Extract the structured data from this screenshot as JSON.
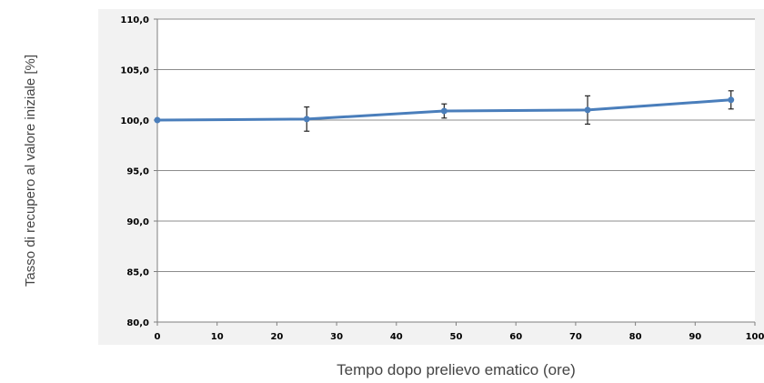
{
  "chart_data": {
    "type": "line",
    "xlabel": "Tempo dopo prelievo ematico (ore)",
    "ylabel": "Tasso di recupero al valore iniziale [%]",
    "xlim": [
      0,
      100
    ],
    "ylim": [
      80,
      110
    ],
    "x_ticks": [
      0,
      10,
      20,
      30,
      40,
      50,
      60,
      70,
      80,
      90,
      100
    ],
    "x_tick_labels": [
      "0",
      "10",
      "20",
      "30",
      "40",
      "50",
      "60",
      "70",
      "80",
      "90",
      "100"
    ],
    "y_ticks": [
      80,
      85,
      90,
      95,
      100,
      105,
      110
    ],
    "y_tick_labels": [
      "80,0",
      "85,0",
      "90,0",
      "95,0",
      "100,0",
      "105,0",
      "110,0"
    ],
    "grid": "horizontal",
    "legend": "none",
    "series": [
      {
        "x": [
          0,
          25,
          48,
          72,
          96
        ],
        "y": [
          100.0,
          100.1,
          100.9,
          101.0,
          102.0
        ],
        "error": [
          0,
          1.2,
          0.7,
          1.4,
          0.9
        ],
        "color": "#4a7ebb"
      }
    ],
    "colors": {
      "line": "#4a7ebb",
      "marker": "#4a7ebb",
      "error_bar": "#222222",
      "grid": "#8c8c8c",
      "panel_background": "#f2f2f2",
      "plot_background": "#ffffff"
    }
  }
}
